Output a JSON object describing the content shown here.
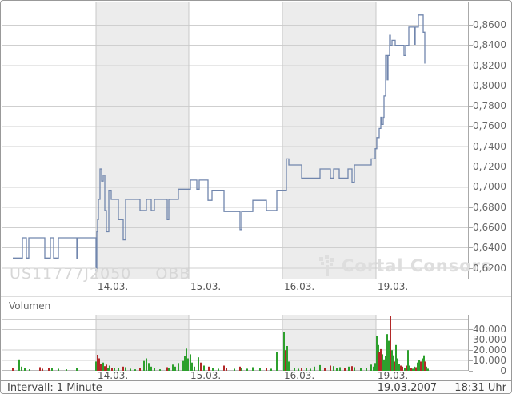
{
  "watermark": {
    "isin": "US11777J2050",
    "exchange": "OBB",
    "brand": "Cortal Consors"
  },
  "volume_panel": {
    "title": "Volumen"
  },
  "status_bar": {
    "interval_label": "Intervall: 1 Minute",
    "date": "19.03.2007",
    "time": "18:31 Uhr"
  },
  "colors": {
    "line": "#7186ad",
    "green": "#2da02d",
    "red": "#b22828",
    "band": "#ececec",
    "grid": "#cfcfcf",
    "vline": "#c8c8c8",
    "axis_border": "#aaaaaa",
    "label": "#666666",
    "watermark": "#d7d7d7"
  },
  "chart_data": [
    {
      "type": "line",
      "title": "",
      "xlabel": "",
      "ylabel": "",
      "legend": "none",
      "grid": true,
      "ylim": [
        0.607,
        0.878
      ],
      "x_days": [
        {
          "label": "14.03.",
          "x": 117
        },
        {
          "label": "15.03.",
          "x": 233
        },
        {
          "label": "16.03.",
          "x": 350
        },
        {
          "label": "19.03.",
          "x": 467
        }
      ],
      "bands": [
        [
          117,
          233
        ],
        [
          350,
          467
        ]
      ],
      "y_ticks": [
        {
          "label": "0,8600",
          "value": 0.86
        },
        {
          "label": "0,8400",
          "value": 0.84
        },
        {
          "label": "0,8200",
          "value": 0.82
        },
        {
          "label": "0,8000",
          "value": 0.8
        },
        {
          "label": "0,7800",
          "value": 0.78
        },
        {
          "label": "0,7600",
          "value": 0.76
        },
        {
          "label": "0,7400",
          "value": 0.74
        },
        {
          "label": "0,7200",
          "value": 0.72
        },
        {
          "label": "0,7000",
          "value": 0.7
        },
        {
          "label": "0,6800",
          "value": 0.68
        },
        {
          "label": "0,6600",
          "value": 0.66
        },
        {
          "label": "0,6400",
          "value": 0.64
        },
        {
          "label": "0,6200",
          "value": 0.62
        }
      ],
      "points": [
        [
          13,
          0.63
        ],
        [
          25,
          0.65
        ],
        [
          30,
          0.63
        ],
        [
          33,
          0.65
        ],
        [
          53,
          0.63
        ],
        [
          60,
          0.65
        ],
        [
          64,
          0.63
        ],
        [
          70,
          0.65
        ],
        [
          93,
          0.63
        ],
        [
          94,
          0.65
        ],
        [
          117,
          0.6185
        ],
        [
          118,
          0.656
        ],
        [
          119,
          0.668
        ],
        [
          120,
          0.688
        ],
        [
          122,
          0.718
        ],
        [
          124,
          0.706
        ],
        [
          126,
          0.712
        ],
        [
          128,
          0.677
        ],
        [
          130,
          0.656
        ],
        [
          133,
          0.697
        ],
        [
          136,
          0.688
        ],
        [
          145,
          0.668
        ],
        [
          151,
          0.648
        ],
        [
          154,
          0.688
        ],
        [
          172,
          0.677
        ],
        [
          180,
          0.688
        ],
        [
          186,
          0.677
        ],
        [
          190,
          0.688
        ],
        [
          206,
          0.668
        ],
        [
          208,
          0.688
        ],
        [
          220,
          0.698
        ],
        [
          235,
          0.707
        ],
        [
          243,
          0.698
        ],
        [
          246,
          0.707
        ],
        [
          257,
          0.687
        ],
        [
          262,
          0.697
        ],
        [
          277,
          0.676
        ],
        [
          297,
          0.658
        ],
        [
          299,
          0.676
        ],
        [
          313,
          0.687
        ],
        [
          330,
          0.677
        ],
        [
          343,
          0.697
        ],
        [
          355,
          0.728
        ],
        [
          358,
          0.722
        ],
        [
          374,
          0.709
        ],
        [
          397,
          0.718
        ],
        [
          410,
          0.709
        ],
        [
          414,
          0.718
        ],
        [
          421,
          0.709
        ],
        [
          432,
          0.718
        ],
        [
          437,
          0.705
        ],
        [
          440,
          0.722
        ],
        [
          461,
          0.728
        ],
        [
          466,
          0.738
        ],
        [
          468,
          0.749
        ],
        [
          471,
          0.758
        ],
        [
          473,
          0.769
        ],
        [
          474,
          0.762
        ],
        [
          476,
          0.769
        ],
        [
          477,
          0.79
        ],
        [
          479,
          0.83
        ],
        [
          481,
          0.806
        ],
        [
          482,
          0.83
        ],
        [
          484,
          0.85
        ],
        [
          485,
          0.84
        ],
        [
          487,
          0.845
        ],
        [
          491,
          0.84
        ],
        [
          502,
          0.83
        ],
        [
          504,
          0.84
        ],
        [
          508,
          0.858
        ],
        [
          515,
          0.841
        ],
        [
          516,
          0.858
        ],
        [
          520,
          0.87
        ],
        [
          526,
          0.853
        ],
        [
          528,
          0.822
        ]
      ]
    },
    {
      "type": "bar",
      "title": "Volumen",
      "xlabel": "",
      "ylabel": "",
      "grid": true,
      "ylim": [
        0,
        54000
      ],
      "x_days": [
        {
          "label": "14.03.",
          "x": 117
        },
        {
          "label": "15.03.",
          "x": 233
        },
        {
          "label": "16.03.",
          "x": 350
        },
        {
          "label": "19.03.",
          "x": 467
        }
      ],
      "bands": [
        [
          117,
          233
        ],
        [
          350,
          467
        ]
      ],
      "y_ticks": [
        {
          "label": "40.000",
          "value": 40000
        },
        {
          "label": "30.000",
          "value": 30000
        },
        {
          "label": "20.000",
          "value": 20000
        },
        {
          "label": "10.000",
          "value": 10000
        },
        {
          "label": "0",
          "value": 0
        }
      ],
      "grid_values": [
        10000,
        20000,
        30000,
        40000,
        50000
      ],
      "bars": [
        [
          13,
          2500,
          "r"
        ],
        [
          21,
          11000,
          "g"
        ],
        [
          24,
          4000,
          "g"
        ],
        [
          28,
          2500,
          "g"
        ],
        [
          34,
          1500,
          "g"
        ],
        [
          47,
          3500,
          "r"
        ],
        [
          50,
          2000,
          "r"
        ],
        [
          58,
          3000,
          "r"
        ],
        [
          62,
          2500,
          "g"
        ],
        [
          70,
          2000,
          "g"
        ],
        [
          80,
          1500,
          "g"
        ],
        [
          93,
          2500,
          "g"
        ],
        [
          117,
          9000,
          "g"
        ],
        [
          119,
          15500,
          "r"
        ],
        [
          121,
          12000,
          "r"
        ],
        [
          123,
          7000,
          "r"
        ],
        [
          125,
          5000,
          "r"
        ],
        [
          126,
          8000,
          "g"
        ],
        [
          128,
          4500,
          "r"
        ],
        [
          130,
          6000,
          "r"
        ],
        [
          132,
          3000,
          "g"
        ],
        [
          134,
          5000,
          "g"
        ],
        [
          137,
          3000,
          "r"
        ],
        [
          140,
          2500,
          "g"
        ],
        [
          145,
          3000,
          "g"
        ],
        [
          151,
          4000,
          "r"
        ],
        [
          154,
          3500,
          "g"
        ],
        [
          160,
          2000,
          "g"
        ],
        [
          166,
          1500,
          "g"
        ],
        [
          172,
          3000,
          "r"
        ],
        [
          177,
          9500,
          "g"
        ],
        [
          180,
          12000,
          "g"
        ],
        [
          183,
          7500,
          "g"
        ],
        [
          186,
          4000,
          "g"
        ],
        [
          190,
          3000,
          "g"
        ],
        [
          197,
          1500,
          "g"
        ],
        [
          206,
          3500,
          "r"
        ],
        [
          208,
          2500,
          "g"
        ],
        [
          213,
          6000,
          "g"
        ],
        [
          216,
          4000,
          "g"
        ],
        [
          220,
          7500,
          "g"
        ],
        [
          226,
          9500,
          "g"
        ],
        [
          228,
          14000,
          "g"
        ],
        [
          230,
          21500,
          "g"
        ],
        [
          232,
          12000,
          "g"
        ],
        [
          235,
          16000,
          "g"
        ],
        [
          237,
          8000,
          "g"
        ],
        [
          240,
          4000,
          "g"
        ],
        [
          245,
          13000,
          "g"
        ],
        [
          248,
          8000,
          "r"
        ],
        [
          252,
          5000,
          "g"
        ],
        [
          258,
          4000,
          "r"
        ],
        [
          263,
          3000,
          "g"
        ],
        [
          270,
          2000,
          "g"
        ],
        [
          277,
          5000,
          "r"
        ],
        [
          280,
          3000,
          "r"
        ],
        [
          290,
          2000,
          "g"
        ],
        [
          297,
          4000,
          "r"
        ],
        [
          299,
          3000,
          "g"
        ],
        [
          306,
          2000,
          "g"
        ],
        [
          313,
          3500,
          "g"
        ],
        [
          322,
          2500,
          "g"
        ],
        [
          330,
          2500,
          "r"
        ],
        [
          336,
          2000,
          "g"
        ],
        [
          343,
          18500,
          "g"
        ],
        [
          352,
          38000,
          "g"
        ],
        [
          354,
          20000,
          "r"
        ],
        [
          356,
          24000,
          "g"
        ],
        [
          358,
          9000,
          "g"
        ],
        [
          365,
          3000,
          "g"
        ],
        [
          370,
          2000,
          "g"
        ],
        [
          374,
          3000,
          "r"
        ],
        [
          380,
          2500,
          "g"
        ],
        [
          385,
          2000,
          "g"
        ],
        [
          390,
          4000,
          "g"
        ],
        [
          397,
          5500,
          "g"
        ],
        [
          403,
          3000,
          "r"
        ],
        [
          410,
          5000,
          "r"
        ],
        [
          414,
          4500,
          "g"
        ],
        [
          418,
          2500,
          "g"
        ],
        [
          422,
          3500,
          "g"
        ],
        [
          428,
          3000,
          "r"
        ],
        [
          433,
          4000,
          "g"
        ],
        [
          437,
          4500,
          "r"
        ],
        [
          440,
          3500,
          "g"
        ],
        [
          448,
          2500,
          "g"
        ],
        [
          455,
          3000,
          "g"
        ],
        [
          461,
          6000,
          "g"
        ],
        [
          464,
          4000,
          "g"
        ],
        [
          466,
          7500,
          "g"
        ],
        [
          468,
          34000,
          "g"
        ],
        [
          470,
          25000,
          "g"
        ],
        [
          471,
          18000,
          "r"
        ],
        [
          473,
          21000,
          "r"
        ],
        [
          475,
          16000,
          "g"
        ],
        [
          477,
          11000,
          "g"
        ],
        [
          479,
          14000,
          "g"
        ],
        [
          480,
          28000,
          "g"
        ],
        [
          481,
          35500,
          "g"
        ],
        [
          483,
          29000,
          "g"
        ],
        [
          485,
          53000,
          "r"
        ],
        [
          487,
          20000,
          "g"
        ],
        [
          489,
          15000,
          "g"
        ],
        [
          491,
          9000,
          "r"
        ],
        [
          492,
          25000,
          "g"
        ],
        [
          494,
          12000,
          "g"
        ],
        [
          496,
          7000,
          "g"
        ],
        [
          498,
          5000,
          "r"
        ],
        [
          500,
          4000,
          "r"
        ],
        [
          503,
          3000,
          "g"
        ],
        [
          505,
          5000,
          "r"
        ],
        [
          507,
          20000,
          "g"
        ],
        [
          509,
          5000,
          "g"
        ],
        [
          511,
          3000,
          "r"
        ],
        [
          513,
          2000,
          "g"
        ],
        [
          515,
          4000,
          "g"
        ],
        [
          517,
          3500,
          "r"
        ],
        [
          519,
          8000,
          "g"
        ],
        [
          521,
          10500,
          "g"
        ],
        [
          523,
          9000,
          "r"
        ],
        [
          525,
          12000,
          "g"
        ],
        [
          527,
          15000,
          "g"
        ],
        [
          528,
          9000,
          "r"
        ],
        [
          530,
          4000,
          "g"
        ],
        [
          532,
          2000,
          "g"
        ]
      ]
    }
  ]
}
